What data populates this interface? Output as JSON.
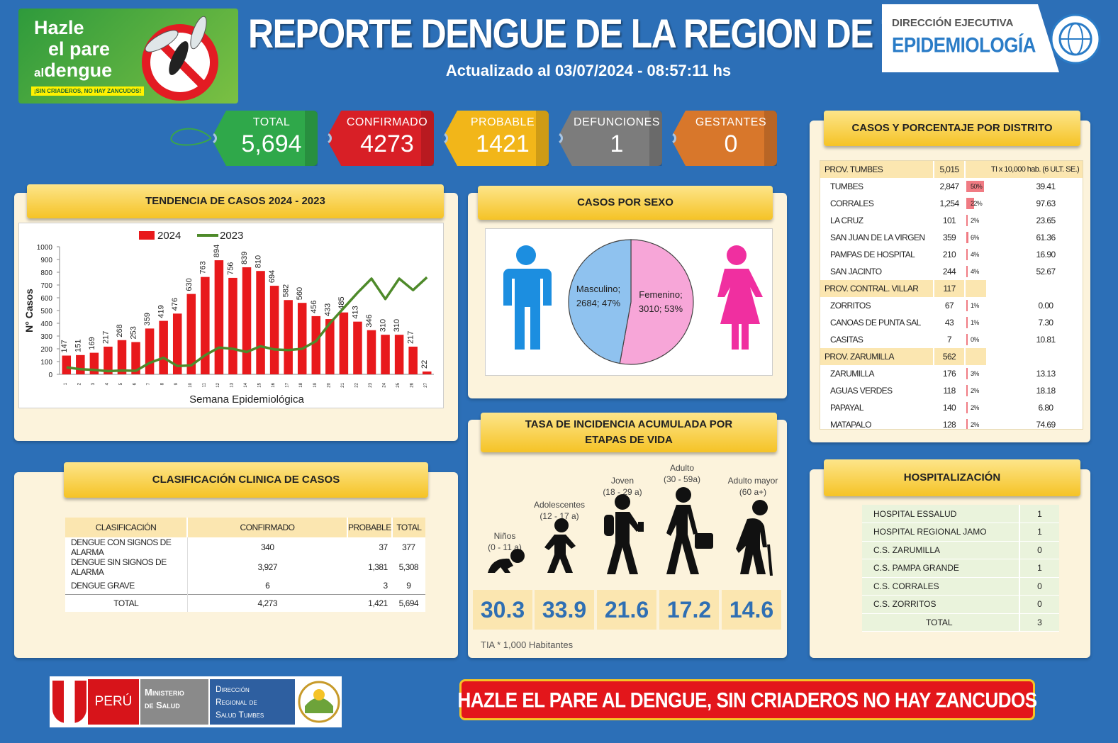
{
  "header": {
    "title": "REPORTE DENGUE DE LA REGION DE TUMBES",
    "updated": "Actualizado al 03/07/2024 - 08:57:11 hs",
    "campaign": {
      "line1": "Hazle",
      "line2": "el pare",
      "line3_small": "al",
      "line3": "dengue",
      "slogan": "¡SIN CRIADEROS, NO HAY ZANCUDOS!"
    },
    "agency": {
      "line1": "DIRECCIÓN EJECUTIVA",
      "line2": "EPIDEMIOLOGÍA"
    }
  },
  "kpis": [
    {
      "label": "TOTAL",
      "value": "5,694",
      "color": "#2fa84a"
    },
    {
      "label": "CONFIRMADO",
      "value": "4273",
      "color": "#d81f26"
    },
    {
      "label": "PROBABLE",
      "value": "1421",
      "color": "#f2b619"
    },
    {
      "label": "DEFUNCIONES",
      "value": "1",
      "color": "#7c7c7c"
    },
    {
      "label": "GESTANTES",
      "value": "0",
      "color": "#d8772b"
    }
  ],
  "trend": {
    "title": "TENDENCIA DE CASOS 2024 - 2023",
    "chart_data": {
      "type": "bar",
      "title": "",
      "xlabel": "Semana Epidemiológica",
      "ylabel": "N° Casos",
      "ylim": [
        0,
        1000
      ],
      "yticks": [
        0,
        100,
        200,
        300,
        400,
        500,
        600,
        700,
        800,
        900,
        1000
      ],
      "categories": [
        "1",
        "2",
        "3",
        "4",
        "5",
        "6",
        "7",
        "8",
        "9",
        "10",
        "11",
        "12",
        "13",
        "14",
        "15",
        "16",
        "17",
        "18",
        "19",
        "20",
        "21",
        "22",
        "23",
        "24",
        "25",
        "26",
        "27"
      ],
      "series": [
        {
          "name": "2024",
          "type": "bar",
          "color": "#e8191c",
          "values": [
            147,
            151,
            169,
            217,
            268,
            253,
            359,
            419,
            476,
            630,
            763,
            894,
            756,
            839,
            810,
            694,
            582,
            560,
            456,
            433,
            485,
            413,
            346,
            310,
            310,
            217,
            22
          ]
        },
        {
          "name": "2023",
          "type": "line",
          "color": "#4e8a2a",
          "values": [
            55,
            40,
            35,
            25,
            30,
            28,
            90,
            130,
            65,
            70,
            150,
            210,
            200,
            175,
            220,
            195,
            190,
            200,
            260,
            400,
            520,
            640,
            750,
            590,
            750,
            660,
            760
          ]
        }
      ],
      "legend": "top"
    }
  },
  "sex": {
    "title": "CASOS POR SEXO",
    "chart_data": {
      "type": "pie",
      "slices": [
        {
          "label": "Masculino; 2684; 47%",
          "value": 2684,
          "color": "#8fc2ef"
        },
        {
          "label": "Femenino; 3010; 53%",
          "value": 3010,
          "color": "#f7a6d8"
        }
      ]
    },
    "male_icon_color": "#1c8ee0",
    "female_icon_color": "#f02fa0"
  },
  "district": {
    "title": "CASOS Y PORCENTAJE POR DISTRITO",
    "header": {
      "name": "PROV. TUMBES",
      "cases": "5,015",
      "rate": "TI x 10,000 hab. (6 ULT. SE.)"
    },
    "rows": [
      {
        "name": "TUMBES",
        "cases": "2,847",
        "pct": "50%",
        "rate": "39.41",
        "bar": 50
      },
      {
        "name": "CORRALES",
        "cases": "1,254",
        "pct": "22%",
        "rate": "97.63",
        "bar": 22
      },
      {
        "name": "LA CRUZ",
        "cases": "101",
        "pct": "2%",
        "rate": "23.65",
        "bar": 2
      },
      {
        "name": "SAN JUAN DE LA VIRGEN",
        "cases": "359",
        "pct": "6%",
        "rate": "61.36",
        "bar": 6
      },
      {
        "name": "PAMPAS DE HOSPITAL",
        "cases": "210",
        "pct": "4%",
        "rate": "16.90",
        "bar": 4
      },
      {
        "name": "SAN JACINTO",
        "cases": "244",
        "pct": "4%",
        "rate": "52.67",
        "bar": 4
      },
      {
        "prov": true,
        "name": "PROV. CONTRAL. VILLAR",
        "cases": "117"
      },
      {
        "name": "ZORRITOS",
        "cases": "67",
        "pct": "1%",
        "rate": "0.00",
        "bar": 1
      },
      {
        "name": "CANOAS DE PUNTA SAL",
        "cases": "43",
        "pct": "1%",
        "rate": "7.30",
        "bar": 1
      },
      {
        "name": "CASITAS",
        "cases": "7",
        "pct": "0%",
        "rate": "10.81",
        "bar": 0
      },
      {
        "prov": true,
        "name": "PROV. ZARUMILLA",
        "cases": "562"
      },
      {
        "name": "ZARUMILLA",
        "cases": "176",
        "pct": "3%",
        "rate": "13.13",
        "bar": 3
      },
      {
        "name": "AGUAS VERDES",
        "cases": "118",
        "pct": "2%",
        "rate": "18.18",
        "bar": 2
      },
      {
        "name": "PAPAYAL",
        "cases": "140",
        "pct": "2%",
        "rate": "6.80",
        "bar": 2
      },
      {
        "name": "MATAPALO",
        "cases": "128",
        "pct": "2%",
        "rate": "74.69",
        "bar": 2
      }
    ]
  },
  "clinical": {
    "title": "CLASIFICACIÓN CLINICA DE CASOS",
    "columns": [
      "CLASIFICACIÓN",
      "CONFIRMADO",
      "PROBABLE",
      "TOTAL"
    ],
    "rows": [
      [
        "DENGUE CON SIGNOS DE ALARMA",
        "340",
        "37",
        "377"
      ],
      [
        "DENGUE SIN SIGNOS DE ALARMA",
        "3,927",
        "1,381",
        "5,308"
      ],
      [
        "DENGUE GRAVE",
        "6",
        "3",
        "9"
      ],
      [
        "TOTAL",
        "4,273",
        "1,421",
        "5,694"
      ]
    ]
  },
  "incidence": {
    "title_line1": "TASA DE INCIDENCIA ACUMULADA POR",
    "title_line2": "ETAPAS DE VIDA",
    "stages": [
      {
        "name": "Niños",
        "range": "(0 - 11 a)",
        "value": "30.3"
      },
      {
        "name": "Adolescentes",
        "range": "(12 - 17 a)",
        "value": "33.9"
      },
      {
        "name": "Joven",
        "range": "(18 - 29 a)",
        "value": "21.6"
      },
      {
        "name": "Adulto",
        "range": "(30 - 59a)",
        "value": "17.2"
      },
      {
        "name": "Adulto mayor",
        "range": "(60 a+)",
        "value": "14.6"
      }
    ],
    "footnote": "TIA * 1,000 Habitantes"
  },
  "hospital": {
    "title": "HOSPITALIZACIÓN",
    "rows": [
      {
        "name": "HOSPITAL ESSALUD",
        "value": "1"
      },
      {
        "name": "HOSPITAL REGIONAL JAMO",
        "value": "1"
      },
      {
        "name": "C.S. ZARUMILLA",
        "value": "0"
      },
      {
        "name": "C.S. PAMPA GRANDE",
        "value": "1"
      },
      {
        "name": "C.S. CORRALES",
        "value": "0"
      },
      {
        "name": "C.S. ZORRITOS",
        "value": "0"
      },
      {
        "name": "TOTAL",
        "value": "3"
      }
    ]
  },
  "footer": {
    "peru": "PERÚ",
    "ministry_l1": "Ministerio",
    "ministry_l2": "de Salud",
    "direction_l1": "Dirección",
    "direction_l2": "Regional de",
    "direction_l3": "Salud Tumbes",
    "banner": "HAZLE EL PARE AL DENGUE, SIN CRIADEROS NO HAY ZANCUDOS"
  }
}
